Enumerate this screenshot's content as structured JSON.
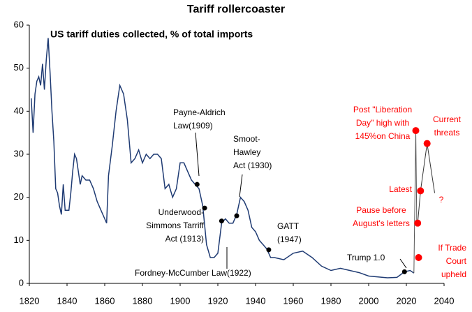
{
  "chart_data": {
    "type": "line",
    "title": "Tariff rollercoaster",
    "subtitle": "US tariff duties collected, % of total imports",
    "xlim": [
      1820,
      2040
    ],
    "xticks": [
      1820,
      1840,
      1860,
      1880,
      1900,
      1920,
      1940,
      1960,
      1980,
      2000,
      2020,
      2040
    ],
    "ylim": [
      0,
      60
    ],
    "yticks": [
      0,
      10,
      20,
      30,
      40,
      50,
      60
    ],
    "series": [
      {
        "color": "#1f3b73",
        "x": [
          1821,
          1822,
          1823,
          1824,
          1825,
          1826,
          1827,
          1828,
          1829,
          1830,
          1831,
          1832,
          1833,
          1834,
          1835,
          1836,
          1837,
          1838,
          1839,
          1840,
          1841,
          1842,
          1843,
          1844,
          1845,
          1846,
          1847,
          1848,
          1850,
          1852,
          1854,
          1856,
          1858,
          1860,
          1861,
          1862,
          1864,
          1866,
          1868,
          1870,
          1872,
          1874,
          1876,
          1878,
          1880,
          1882,
          1884,
          1886,
          1888,
          1890,
          1892,
          1894,
          1896,
          1898,
          1900,
          1902,
          1904,
          1906,
          1908,
          1910,
          1912,
          1914,
          1916,
          1918,
          1920,
          1922,
          1924,
          1926,
          1928,
          1930,
          1932,
          1934,
          1936,
          1938,
          1940,
          1942,
          1944,
          1946,
          1948,
          1950,
          1955,
          1960,
          1965,
          1970,
          1975,
          1980,
          1985,
          1990,
          1995,
          2000,
          2005,
          2010,
          2015,
          2019,
          2022,
          2024
        ],
        "values": [
          43,
          35,
          44,
          47,
          48,
          46,
          51,
          45,
          52,
          57,
          49,
          40,
          33,
          22,
          21,
          18,
          16,
          23,
          17,
          17,
          17,
          21,
          26,
          30,
          29,
          26,
          23,
          25,
          24,
          24,
          22,
          19,
          17,
          15,
          14,
          25,
          32,
          40,
          46,
          44,
          38,
          28,
          29,
          31,
          28,
          30,
          29,
          30,
          30,
          29,
          22,
          23,
          20,
          22,
          28,
          28,
          26,
          24,
          23,
          22,
          18,
          9,
          6,
          6,
          7,
          14,
          15,
          14,
          14,
          16,
          20,
          19,
          17,
          13,
          12,
          10,
          9,
          8,
          6,
          6,
          5.5,
          7,
          7.5,
          6,
          4,
          3,
          3.5,
          3,
          2.5,
          1.7,
          1.5,
          1.3,
          1.4,
          2.7,
          3,
          2.4
        ]
      },
      {
        "color": "#555555",
        "x": [
          2024,
          2025,
          2025.5
        ],
        "values": [
          2.4,
          35.5,
          14
        ]
      },
      {
        "color": "#333333",
        "x": [
          2026,
          2027.5,
          2031,
          2035
        ],
        "values": [
          14,
          21.5,
          32.5,
          21
        ]
      }
    ],
    "events": {
      "color": "#000000",
      "x": [
        1909,
        1913,
        1922,
        1930,
        1947,
        2019
      ],
      "values": [
        23,
        17.5,
        14.5,
        15.7,
        7.8,
        2.7
      ],
      "labels": [
        [
          "Payne-Aldrich",
          "Law(1909)"
        ],
        [
          "Underwood-",
          "Simmons Tarriff",
          "Act (1913)"
        ],
        [
          "Fordney-McCumber Law(1922)"
        ],
        [
          "Smoot-",
          "Hawley",
          "Act (1930)"
        ],
        [
          "GATT",
          "(1947)"
        ],
        [
          "Trump 1.0"
        ]
      ]
    },
    "scenarios": {
      "color": "#ff0000",
      "x": [
        2025,
        2026,
        2027.5,
        2031,
        2026.5
      ],
      "values": [
        35.5,
        14,
        21.5,
        32.5,
        6
      ],
      "labels": [
        [
          "Post \"Liberation",
          "Day\" high with",
          "145%on China"
        ],
        [
          "Pause before",
          "August's letters"
        ],
        [
          "Latest"
        ],
        [
          "Current",
          "threats"
        ],
        [
          "If Trade",
          "Court",
          "upheld"
        ]
      ]
    },
    "question": "?"
  }
}
